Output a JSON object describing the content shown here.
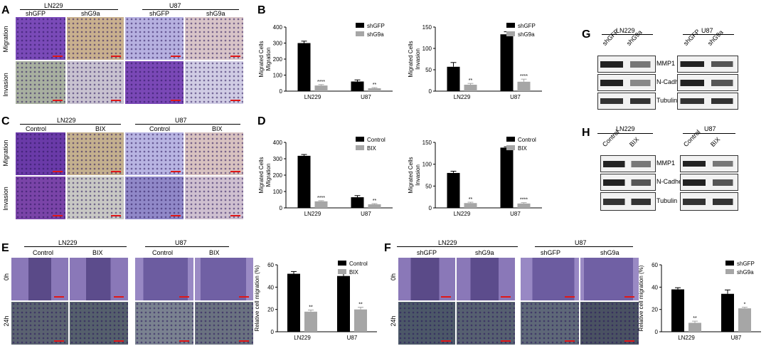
{
  "panels": {
    "A": {
      "letter": "A",
      "group1": "LN229",
      "group2": "U87",
      "cols": [
        "shGFP",
        "shG9a",
        "shGFP",
        "shG9a"
      ],
      "rows": [
        "Migration",
        "Invasion"
      ]
    },
    "C": {
      "letter": "C",
      "group1": "LN229",
      "group2": "U87",
      "cols": [
        "Control",
        "BIX",
        "Control",
        "BIX"
      ],
      "rows": [
        "Migration",
        "Invasion"
      ]
    },
    "E": {
      "letter": "E",
      "group1": "LN229",
      "group2": "U87",
      "cols": [
        "Control",
        "BIX",
        "Control",
        "BIX"
      ],
      "rows": [
        "0h",
        "24h"
      ]
    },
    "F": {
      "letter": "F",
      "group1": "LN229",
      "group2": "U87",
      "cols": [
        "shGFP",
        "shG9a",
        "shGFP",
        "shG9a"
      ],
      "rows": [
        "0h",
        "24h"
      ]
    },
    "G": {
      "letter": "G",
      "group1": "LN229",
      "group2": "U87",
      "cols": [
        "shGFP",
        "shG9a",
        "shGFP",
        "shG9a"
      ],
      "proteins": [
        "MMP1",
        "N-Cadherin",
        "Tubulin"
      ]
    },
    "H": {
      "letter": "H",
      "group1": "LN229",
      "group2": "U87",
      "cols": [
        "Control",
        "BIX",
        "Control",
        "BIX"
      ],
      "proteins": [
        "MMP1",
        "N-Cadherin",
        "Tubulin"
      ]
    },
    "B": {
      "letter": "B"
    },
    "D": {
      "letter": "D"
    }
  },
  "colors": {
    "series1": "#000000",
    "series2": "#a6a6a6",
    "scalebar": "#e01818"
  },
  "chart_data": [
    {
      "id": "B1",
      "type": "bar",
      "categories": [
        "LN229",
        "U87"
      ],
      "series": [
        {
          "name": "shGFP",
          "values": [
            300,
            60
          ]
        },
        {
          "name": "shG9a",
          "values": [
            35,
            18
          ]
        }
      ],
      "errors": [
        [
          12,
          10
        ],
        [
          6,
          4
        ]
      ],
      "sig": [
        [
          "",
          ""
        ],
        [
          "****",
          "**"
        ]
      ],
      "ylabel": "Migrated Cells\nMigration",
      "ylim": [
        0,
        400
      ],
      "yticks": [
        0,
        100,
        200,
        300,
        400
      ],
      "legend": "top-right"
    },
    {
      "id": "B2",
      "type": "bar",
      "categories": [
        "LN229",
        "U87"
      ],
      "series": [
        {
          "name": "shGFP",
          "values": [
            57,
            133
          ]
        },
        {
          "name": "shG9a",
          "values": [
            15,
            22
          ]
        }
      ],
      "errors": [
        [
          10,
          6
        ],
        [
          3,
          6
        ]
      ],
      "sig": [
        [
          "",
          ""
        ],
        [
          "**",
          "****"
        ]
      ],
      "ylabel": "Migrated Cells\nInvasion",
      "ylim": [
        0,
        150
      ],
      "yticks": [
        0,
        50,
        100,
        150
      ],
      "legend": "top-right"
    },
    {
      "id": "D1",
      "type": "bar",
      "categories": [
        "LN229",
        "U87"
      ],
      "series": [
        {
          "name": "Control",
          "values": [
            318,
            65
          ]
        },
        {
          "name": "BIX",
          "values": [
            40,
            22
          ]
        }
      ],
      "errors": [
        [
          8,
          10
        ],
        [
          4,
          4
        ]
      ],
      "sig": [
        [
          "",
          ""
        ],
        [
          "****",
          "**"
        ]
      ],
      "ylabel": "Migrated Cells\nMigration",
      "ylim": [
        0,
        400
      ],
      "yticks": [
        0,
        100,
        200,
        300,
        400
      ],
      "legend": "top-right"
    },
    {
      "id": "D2",
      "type": "bar",
      "categories": [
        "LN229",
        "U87"
      ],
      "series": [
        {
          "name": "Control",
          "values": [
            80,
            138
          ]
        },
        {
          "name": "BIX",
          "values": [
            11,
            10
          ]
        }
      ],
      "errors": [
        [
          4,
          2
        ],
        [
          2,
          2
        ]
      ],
      "sig": [
        [
          "",
          ""
        ],
        [
          "**",
          "****"
        ]
      ],
      "ylabel": "Migrated Cells\nInvasion",
      "ylim": [
        0,
        150
      ],
      "yticks": [
        0,
        50,
        100,
        150
      ],
      "legend": "top-right"
    },
    {
      "id": "E",
      "type": "bar",
      "categories": [
        "LN229",
        "U87"
      ],
      "series": [
        {
          "name": "Control",
          "values": [
            52,
            50
          ]
        },
        {
          "name": "BIX",
          "values": [
            18,
            20
          ]
        }
      ],
      "errors": [
        [
          2,
          2
        ],
        [
          1.5,
          2
        ]
      ],
      "sig": [
        [
          "",
          ""
        ],
        [
          "**",
          "**"
        ]
      ],
      "ylabel": "Relative cell migration (%)",
      "ylim": [
        0,
        60
      ],
      "yticks": [
        0,
        20,
        40,
        60
      ],
      "legend": "top-right"
    },
    {
      "id": "F",
      "type": "bar",
      "categories": [
        "LN229",
        "U87"
      ],
      "series": [
        {
          "name": "shGFP",
          "values": [
            38,
            34
          ]
        },
        {
          "name": "shG9a",
          "values": [
            8,
            21
          ]
        }
      ],
      "errors": [
        [
          1.5,
          3.5
        ],
        [
          1.5,
          1
        ]
      ],
      "sig": [
        [
          "",
          ""
        ],
        [
          "**",
          "*"
        ]
      ],
      "ylabel": "Relative cell migration (%)",
      "ylim": [
        0,
        60
      ],
      "yticks": [
        0,
        20,
        40,
        60
      ],
      "legend": "top-right"
    }
  ]
}
